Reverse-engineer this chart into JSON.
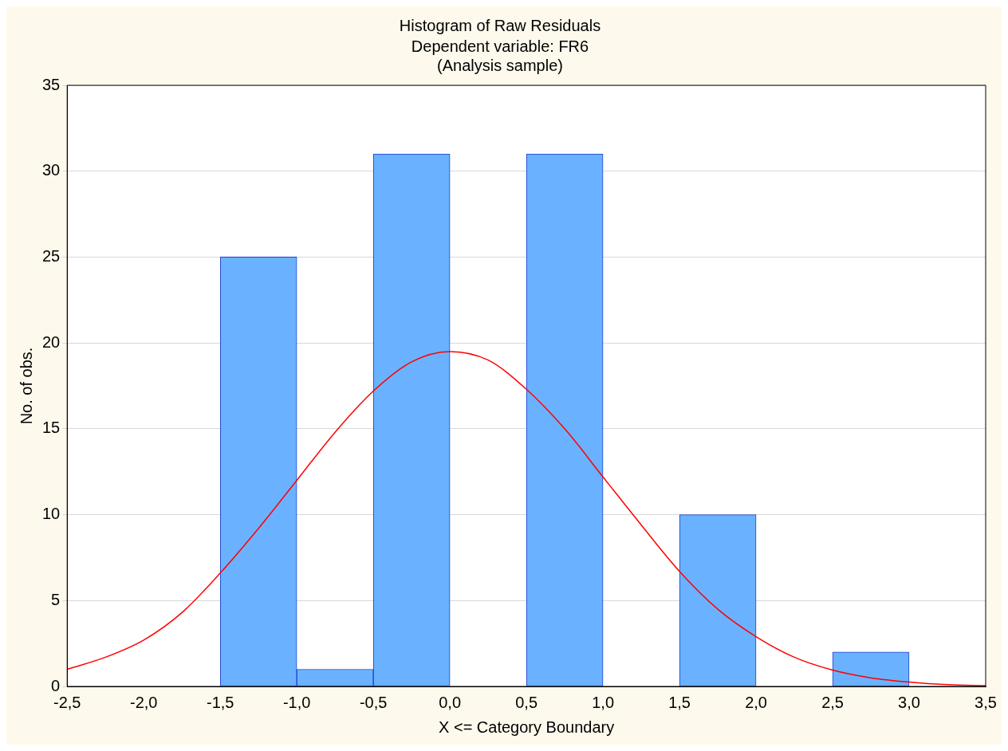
{
  "chart_data": {
    "type": "histogram",
    "title": "Histogram of Raw Residuals",
    "subtitle": "Dependent variable: FR6\n(Analysis sample)",
    "xlabel": "X <= Category Boundary",
    "ylabel": "No. of obs.",
    "bins": [
      -2.5,
      -2.0,
      -1.5,
      -1.0,
      -0.5,
      0.0,
      0.5,
      1.0,
      1.5,
      2.0,
      2.5,
      3.0,
      3.5
    ],
    "values": [
      0,
      0,
      25,
      1,
      31,
      0,
      31,
      0,
      10,
      0,
      2,
      0
    ],
    "color": "#6ab2ff",
    "series": [
      {
        "type": "line",
        "color": "#ff0000",
        "x": [
          -2.5,
          -2.25,
          -2.0,
          -1.75,
          -1.5,
          -1.25,
          -1.0,
          -0.75,
          -0.5,
          -0.25,
          0.0,
          0.25,
          0.5,
          0.75,
          1.0,
          1.25,
          1.5,
          1.75,
          2.0,
          2.25,
          2.5,
          2.75,
          3.0,
          3.25,
          3.5
        ],
        "values": [
          1.0,
          1.7,
          2.7,
          4.3,
          6.6,
          9.2,
          12.0,
          14.8,
          17.2,
          18.9,
          19.5,
          19.0,
          17.3,
          15.0,
          12.2,
          9.4,
          6.7,
          4.5,
          2.9,
          1.7,
          0.95,
          0.5,
          0.25,
          0.1,
          0.05
        ]
      }
    ],
    "xlim": [
      -2.5,
      3.5
    ],
    "xticks": [
      {
        "value": -2.5,
        "label": "-2,5"
      },
      {
        "value": -2.0,
        "label": "-2,0"
      },
      {
        "value": -1.5,
        "label": "-1,5"
      },
      {
        "value": -1.0,
        "label": "-1,0"
      },
      {
        "value": -0.5,
        "label": "-0,5"
      },
      {
        "value": 0.0,
        "label": "0,0"
      },
      {
        "value": 0.5,
        "label": "0,5"
      },
      {
        "value": 1.0,
        "label": "1,0"
      },
      {
        "value": 1.5,
        "label": "1,5"
      },
      {
        "value": 2.0,
        "label": "2,0"
      },
      {
        "value": 2.5,
        "label": "2,5"
      },
      {
        "value": 3.0,
        "label": "3,0"
      },
      {
        "value": 3.5,
        "label": "3,5"
      }
    ],
    "ylim": [
      0,
      35
    ],
    "yticks": [
      0,
      5,
      10,
      15,
      20,
      25,
      30,
      35
    ],
    "grid": "y",
    "marker": "none"
  }
}
